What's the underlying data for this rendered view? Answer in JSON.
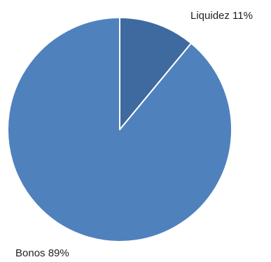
{
  "chart_data": {
    "type": "pie",
    "title": "",
    "slices": [
      {
        "label": "Liquidez",
        "value": 11,
        "display": "Liquidez 11%",
        "color": "#3e6a9f"
      },
      {
        "label": "Bonos",
        "value": 89,
        "display": "Bonos 89%",
        "color": "#4f81bd"
      }
    ],
    "legend": "none",
    "start_angle_deg": 0,
    "direction": "clockwise"
  }
}
